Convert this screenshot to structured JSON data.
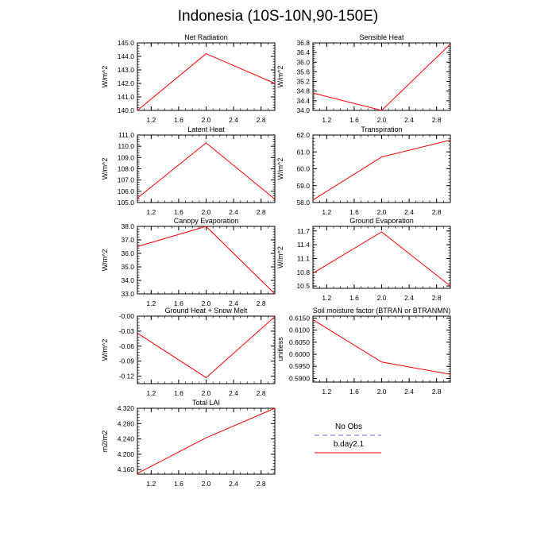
{
  "title": "Indonesia (10S-10N,90-150E)",
  "legend": {
    "items": [
      {
        "label": "No Obs",
        "color": "#9999ee",
        "dash": true
      },
      {
        "label": "b.day2.1",
        "color": "#ff0000",
        "dash": false
      }
    ]
  },
  "chart_data": [
    {
      "type": "line",
      "title": "Net Radiation",
      "ylabel": "W/m^2",
      "xlabel": "",
      "xlim": [
        1.0,
        3.0
      ],
      "ylim": [
        140.0,
        145.0
      ],
      "xticks": [
        "1.2",
        "1.6",
        "2.0",
        "2.4",
        "2.8"
      ],
      "yticks": [
        "140.0",
        "141.0",
        "142.0",
        "143.0",
        "144.0",
        "145.0"
      ],
      "series": [
        {
          "name": "b.day2.1",
          "x": [
            1,
            2,
            3
          ],
          "y": [
            140.0,
            144.2,
            142.0
          ]
        }
      ]
    },
    {
      "type": "line",
      "title": "Sensible Heat",
      "ylabel": "W/m^2",
      "xlabel": "",
      "xlim": [
        1.0,
        3.0
      ],
      "ylim": [
        34.0,
        36.8
      ],
      "xticks": [
        "1.2",
        "1.6",
        "2.0",
        "2.4",
        "2.8"
      ],
      "yticks": [
        "34.0",
        "34.4",
        "34.8",
        "35.2",
        "35.6",
        "36.0",
        "36.4",
        "36.8"
      ],
      "series": [
        {
          "name": "b.day2.1",
          "x": [
            1,
            2,
            3
          ],
          "y": [
            34.72,
            34.0,
            36.75
          ]
        }
      ]
    },
    {
      "type": "line",
      "title": "Latent Heat",
      "ylabel": "W/m^2",
      "xlabel": "",
      "xlim": [
        1.0,
        3.0
      ],
      "ylim": [
        105.0,
        111.0
      ],
      "xticks": [
        "1.2",
        "1.6",
        "2.0",
        "2.4",
        "2.8"
      ],
      "yticks": [
        "105.0",
        "106.0",
        "107.0",
        "108.0",
        "109.0",
        "110.0",
        "111.0"
      ],
      "series": [
        {
          "name": "b.day2.1",
          "x": [
            1,
            2,
            3
          ],
          "y": [
            105.4,
            110.3,
            105.3
          ]
        }
      ]
    },
    {
      "type": "line",
      "title": "Transpiration",
      "ylabel": "W/m^2",
      "xlabel": "",
      "xlim": [
        1.0,
        3.0
      ],
      "ylim": [
        58.0,
        62.0
      ],
      "xticks": [
        "1.2",
        "1.6",
        "2.0",
        "2.4",
        "2.8"
      ],
      "yticks": [
        "58.0",
        "59.0",
        "60.0",
        "61.0",
        "62.0"
      ],
      "series": [
        {
          "name": "b.day2.1",
          "x": [
            1,
            2,
            3
          ],
          "y": [
            58.15,
            60.7,
            61.7
          ]
        }
      ]
    },
    {
      "type": "line",
      "title": "Canopy Evaporation",
      "ylabel": "W/m^2",
      "xlabel": "",
      "xlim": [
        1.0,
        3.0
      ],
      "ylim": [
        33.0,
        38.0
      ],
      "xticks": [
        "1.2",
        "1.6",
        "2.0",
        "2.4",
        "2.8"
      ],
      "yticks": [
        "33.0",
        "34.0",
        "35.0",
        "36.0",
        "37.0",
        "38.0"
      ],
      "series": [
        {
          "name": "b.day2.1",
          "x": [
            1,
            2,
            3
          ],
          "y": [
            36.5,
            38.0,
            33.0
          ]
        }
      ]
    },
    {
      "type": "line",
      "title": "Ground Evaporation",
      "ylabel": "W/m^2",
      "xlabel": "",
      "xlim": [
        1.0,
        3.0
      ],
      "ylim": [
        10.45,
        11.8
      ],
      "xticks": [
        "1.2",
        "1.6",
        "2.0",
        "2.4",
        "2.8"
      ],
      "yticks": [
        "10.5",
        "10.8",
        "11.1",
        "11.4",
        "11.7"
      ],
      "series": [
        {
          "name": "b.day2.1",
          "x": [
            1,
            2,
            3
          ],
          "y": [
            10.78,
            11.68,
            10.5
          ]
        }
      ]
    },
    {
      "type": "line",
      "title": "Ground Heat + Snow Melt",
      "ylabel": "W/m^2",
      "xlabel": "",
      "xlim": [
        1.0,
        3.0
      ],
      "ylim": [
        -0.135,
        0.0
      ],
      "xticks": [
        "1.2",
        "1.6",
        "2.0",
        "2.4",
        "2.8"
      ],
      "yticks": [
        "-0.12",
        "-0.09",
        "-0.06",
        "-0.03",
        "-0.00"
      ],
      "series": [
        {
          "name": "b.day2.1",
          "x": [
            1,
            2,
            3
          ],
          "y": [
            -0.034,
            -0.123,
            -0.001
          ]
        }
      ]
    },
    {
      "type": "line",
      "title": "Soil moisture factor (BTRAN or BTRANMN)",
      "ylabel": "unitless",
      "xlabel": "",
      "xlim": [
        1.0,
        3.0
      ],
      "ylim": [
        0.5885,
        0.6158
      ],
      "xticks": [
        "1.2",
        "1.6",
        "2.0",
        "2.4",
        "2.8"
      ],
      "yticks": [
        "0.5900",
        "0.5950",
        "0.6000",
        "0.6050",
        "0.6100",
        "0.6150"
      ],
      "series": [
        {
          "name": "b.day2.1",
          "x": [
            1,
            2,
            3
          ],
          "y": [
            0.6143,
            0.5968,
            0.5917
          ]
        }
      ]
    },
    {
      "type": "line",
      "title": "Total LAI",
      "ylabel": "m2/m2",
      "xlabel": "",
      "xlim": [
        1.0,
        3.0
      ],
      "ylim": [
        4.148,
        4.32
      ],
      "xticks": [
        "1.2",
        "1.6",
        "2.0",
        "2.4",
        "2.8"
      ],
      "yticks": [
        "4.160",
        "4.200",
        "4.240",
        "4.280",
        "4.320"
      ],
      "series": [
        {
          "name": "b.day2.1",
          "x": [
            1,
            2,
            3
          ],
          "y": [
            4.15,
            4.243,
            4.32
          ]
        }
      ]
    }
  ]
}
